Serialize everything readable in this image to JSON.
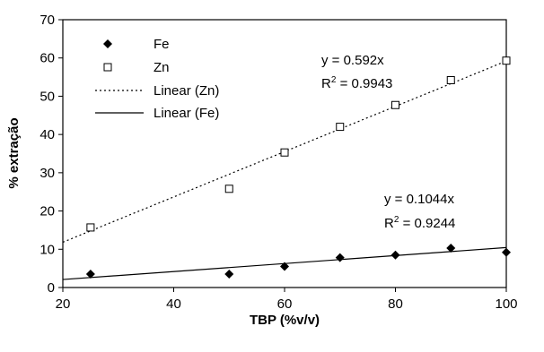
{
  "chart_data": {
    "type": "scatter",
    "title": "",
    "xlabel": "TBP (%v/v)",
    "ylabel": "% extração",
    "xlim": [
      20,
      100
    ],
    "ylim": [
      0,
      70
    ],
    "xticks": [
      20,
      40,
      60,
      80,
      100
    ],
    "yticks": [
      0,
      10,
      20,
      30,
      40,
      50,
      60,
      70
    ],
    "grid": false,
    "legend_position": "top-left",
    "series": [
      {
        "name": "Fe",
        "marker": "filled-diamond",
        "color": "#000000",
        "points": [
          {
            "x": 25,
            "y": 3.5
          },
          {
            "x": 50,
            "y": 3.5
          },
          {
            "x": 60,
            "y": 5.5
          },
          {
            "x": 70,
            "y": 7.8
          },
          {
            "x": 80,
            "y": 8.5
          },
          {
            "x": 90,
            "y": 10.3
          },
          {
            "x": 100,
            "y": 9.2
          }
        ]
      },
      {
        "name": "Zn",
        "marker": "open-square",
        "color": "#000000",
        "points": [
          {
            "x": 25,
            "y": 15.7
          },
          {
            "x": 50,
            "y": 25.8
          },
          {
            "x": 60,
            "y": 35.3
          },
          {
            "x": 70,
            "y": 42.0
          },
          {
            "x": 80,
            "y": 47.7
          },
          {
            "x": 90,
            "y": 54.2
          },
          {
            "x": 100,
            "y": 59.3
          }
        ]
      }
    ],
    "trendlines": [
      {
        "name": "Linear (Zn)",
        "style": "dotted",
        "slope": 0.592,
        "x_range": [
          20,
          100
        ],
        "equation": "y = 0.592x",
        "r2_label": "R",
        "r2_value": " = 0.9943"
      },
      {
        "name": "Linear (Fe)",
        "style": "solid",
        "slope": 0.1044,
        "x_range": [
          20,
          100
        ],
        "equation": "y = 0.1044x",
        "r2_label": "R",
        "r2_value": " = 0.9244"
      }
    ],
    "r2_superscript": "2"
  }
}
